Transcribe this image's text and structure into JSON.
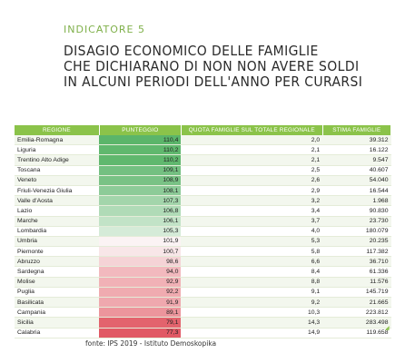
{
  "header": {
    "indicator_label": "INDICATORE 5",
    "title_lines": [
      "DISAGIO ECONOMICO DELLE FAMIGLIE",
      "CHE DICHIARANO DI NON NON AVERE SOLDI",
      "IN ALCUNI PERIODI DELL'ANNO PER CURARSI"
    ]
  },
  "table": {
    "columns": [
      "REGIONE",
      "PUNTEGGIO",
      "QUOTA FAMIGLIE SUL TOTALE REGIONALE",
      "STIMA FAMIGLIE"
    ],
    "rows": [
      {
        "region": "Emilia-Romagna",
        "score": "110,4",
        "quota": "2,0",
        "stima": "39.312",
        "color": "#5bb56a"
      },
      {
        "region": "Liguria",
        "score": "110,2",
        "quota": "2,1",
        "stima": "16.122",
        "color": "#60b86e"
      },
      {
        "region": "Trentino Alto Adige",
        "score": "110,2",
        "quota": "2,1",
        "stima": "9.547",
        "color": "#60b86e"
      },
      {
        "region": "Toscana",
        "score": "109,1",
        "quota": "2,5",
        "stima": "40.607",
        "color": "#74c081"
      },
      {
        "region": "Veneto",
        "score": "108,9",
        "quota": "2,6",
        "stima": "54.040",
        "color": "#79c285"
      },
      {
        "region": "Friuli-Venezia Giulia",
        "score": "108,1",
        "quota": "2,9",
        "stima": "16.544",
        "color": "#8dcb98"
      },
      {
        "region": "Valle d'Aosta",
        "score": "107,3",
        "quota": "3,2",
        "stima": "1.968",
        "color": "#a3d5ab"
      },
      {
        "region": "Lazio",
        "score": "106,8",
        "quota": "3,4",
        "stima": "90.830",
        "color": "#b0dbb7"
      },
      {
        "region": "Marche",
        "score": "106,1",
        "quota": "3,7",
        "stima": "23.730",
        "color": "#c2e3c7"
      },
      {
        "region": "Lombardia",
        "score": "105,3",
        "quota": "4,0",
        "stima": "180.079",
        "color": "#d5ebd8"
      },
      {
        "region": "Umbria",
        "score": "101,9",
        "quota": "5,3",
        "stima": "20.235",
        "color": "#fbf3f4"
      },
      {
        "region": "Piemonte",
        "score": "100,7",
        "quota": "5,8",
        "stima": "117.382",
        "color": "#f8e6e8"
      },
      {
        "region": "Abruzzo",
        "score": "98,6",
        "quota": "6,6",
        "stima": "36.710",
        "color": "#f5d3d6"
      },
      {
        "region": "Sardegna",
        "score": "94,0",
        "quota": "8,4",
        "stima": "61.336",
        "color": "#f2b9be"
      },
      {
        "region": "Molise",
        "score": "92,9",
        "quota": "8,8",
        "stima": "11.576",
        "color": "#f1b1b6"
      },
      {
        "region": "Puglia",
        "score": "92,2",
        "quota": "9,1",
        "stima": "145.719",
        "color": "#f0abb0"
      },
      {
        "region": "Basilicata",
        "score": "91,9",
        "quota": "9,2",
        "stima": "21.665",
        "color": "#efa8ae"
      },
      {
        "region": "Campania",
        "score": "89,1",
        "quota": "10,3",
        "stima": "223.812",
        "color": "#ec959c"
      },
      {
        "region": "Sicilia",
        "score": "79,1",
        "quota": "14,3",
        "stima": "283.498",
        "color": "#e3636d"
      },
      {
        "region": "Calabria",
        "score": "77,3",
        "quota": "14,9",
        "stima": "119.658",
        "color": "#e15a65"
      }
    ]
  },
  "footer": {
    "source": "fonte: IPS 2019 - Istituto Demoskopika"
  }
}
